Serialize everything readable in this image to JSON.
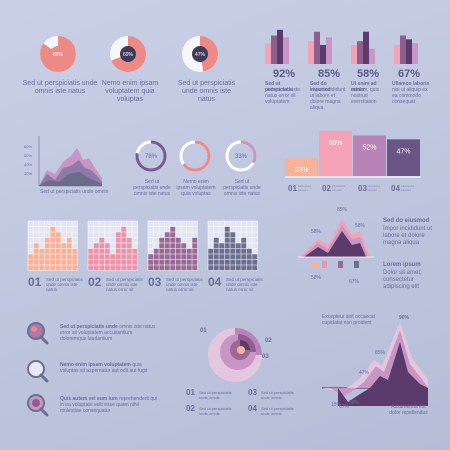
{
  "colors": {
    "salmon": "#ee8a86",
    "pink": "#e98aa4",
    "plum": "#8d5e8e",
    "lilac": "#c895c5",
    "slate": "#6b6b8b",
    "peach": "#f8b29a",
    "deep": "#5b3b6b",
    "grid": "#ffffff"
  },
  "donuts": [
    {
      "label": "85%",
      "value": 85,
      "text": "Sed ut perspiciatis unde omnis iste natus",
      "color": "#ee8a86"
    },
    {
      "label": "69%",
      "value": 69,
      "text": "Nemo enim ipsam voluptatem quia voluptas",
      "color": "#ee8a86"
    },
    {
      "label": "47%",
      "value": 47,
      "text": "Sed ut perspiciatis unde omnis iste natus",
      "color": "#ee8a86"
    }
  ],
  "mini_bars": [
    {
      "pct": "92%",
      "title": "Sed ut perspiciatis",
      "text": "unde omnis iste natus error sit voluptatem",
      "values": [
        0.55,
        0.75,
        0.9,
        0.7
      ]
    },
    {
      "pct": "85%",
      "title": "Sed do eiusmod",
      "text": "Impor incididunt ut labore et dolore magna aliqua",
      "values": [
        0.6,
        0.85,
        0.5,
        0.7
      ]
    },
    {
      "pct": "58%",
      "title": "Ut enim ad minim",
      "text": "veniam, quis nostrud exercitation",
      "values": [
        0.5,
        0.6,
        0.85,
        0.4
      ]
    },
    {
      "pct": "67%",
      "title": "Ullamco laboris",
      "text": "nisi ut aliquip ex ea commodo consequat",
      "values": [
        0.5,
        0.75,
        0.65,
        0.55
      ]
    }
  ],
  "area_chart": {
    "caption": "Sed ut perspiciatis unde omnis",
    "yticks": [
      "60%",
      "50%",
      "40%",
      "30%"
    ]
  },
  "rings": [
    {
      "label": "78%",
      "value": 78,
      "text": "Sed ut perspiciatis unde omnis iste natus",
      "color": "#7a5a90"
    },
    {
      "label": "",
      "value": 65,
      "text": "Nemo enim ipsam voluptatem quia voluptas",
      "color": "#ee8a86"
    },
    {
      "label": "33%",
      "value": 33,
      "text": "Sed ut perspiciatis unde omnis iste natus",
      "color": "#c895c5"
    }
  ],
  "step_chart": {
    "bars": [
      {
        "label": "01",
        "value": "23%",
        "v": 23,
        "color": "#f8b29a"
      },
      {
        "label": "02",
        "value": "58%",
        "v": 58,
        "color": "#f4a3b6"
      },
      {
        "label": "03",
        "value": "52%",
        "v": 52,
        "color": "#b884b8"
      },
      {
        "label": "04",
        "value": "47%",
        "v": 47,
        "color": "#6b5586"
      }
    ]
  },
  "histograms": [
    {
      "num": "01",
      "text": "Sed ut perspiciatis unde omnis iste natus",
      "color": "#f8b29a"
    },
    {
      "num": "02",
      "text": "Sed ut perspiciatis unde omnis iste natus error sit",
      "color": "#ec93ac"
    },
    {
      "num": "03",
      "text": "Sed ut perspiciatis unde omnis iste natus error sit",
      "color": "#9a6a96"
    },
    {
      "num": "04",
      "text": "Sed ut perspiciatis unde omnis iste natus error sit",
      "color": "#6d6f90"
    }
  ],
  "mountain": {
    "labels": [
      "85%",
      "58%",
      "58%",
      "67%",
      "58%"
    ],
    "side1_title": "Sed do eiusmod",
    "side1_text": "Impor incididunt ut labore et dolore magna aliqua",
    "side2_title": "Lorem ipsum",
    "side2_text": "Dolor sit amet, consectetur adipiscing elit"
  },
  "magnifiers": [
    {
      "title": "Sed ut perspiciatis unde",
      "text": "omnis iste natus error sit voluptatem accusantium doloremque laudantium"
    },
    {
      "title": "Nemo enim ipsam voluptatem",
      "text": "quia voluptas sit aspernatur aut odit aut fugit"
    },
    {
      "title": "Quis autem vel eum iure",
      "text": "reprehenderit qui in ea voluptate velit esse quam nihil molestiae consequatur"
    }
  ],
  "spiral": {
    "labels": [
      "01",
      "02",
      "03"
    ],
    "items": [
      {
        "num": "01",
        "text": "Sed ut perspiciatis unde omnis"
      },
      {
        "num": "02",
        "text": "Sed ut perspiciatis unde omnis"
      },
      {
        "num": "03",
        "text": "Sed ut perspiciatis unde omnis"
      },
      {
        "num": "04",
        "text": "Sed ut perspiciatis unde omnis"
      }
    ]
  },
  "peak_chart": {
    "top_text": "Excepteur sint occaecat cupidatat non proident",
    "top_pct": "90%",
    "labels": [
      "85%",
      "47%",
      "58%",
      "67%",
      "15%"
    ],
    "bottom_text": "Assumenda est dolor repellendus"
  }
}
